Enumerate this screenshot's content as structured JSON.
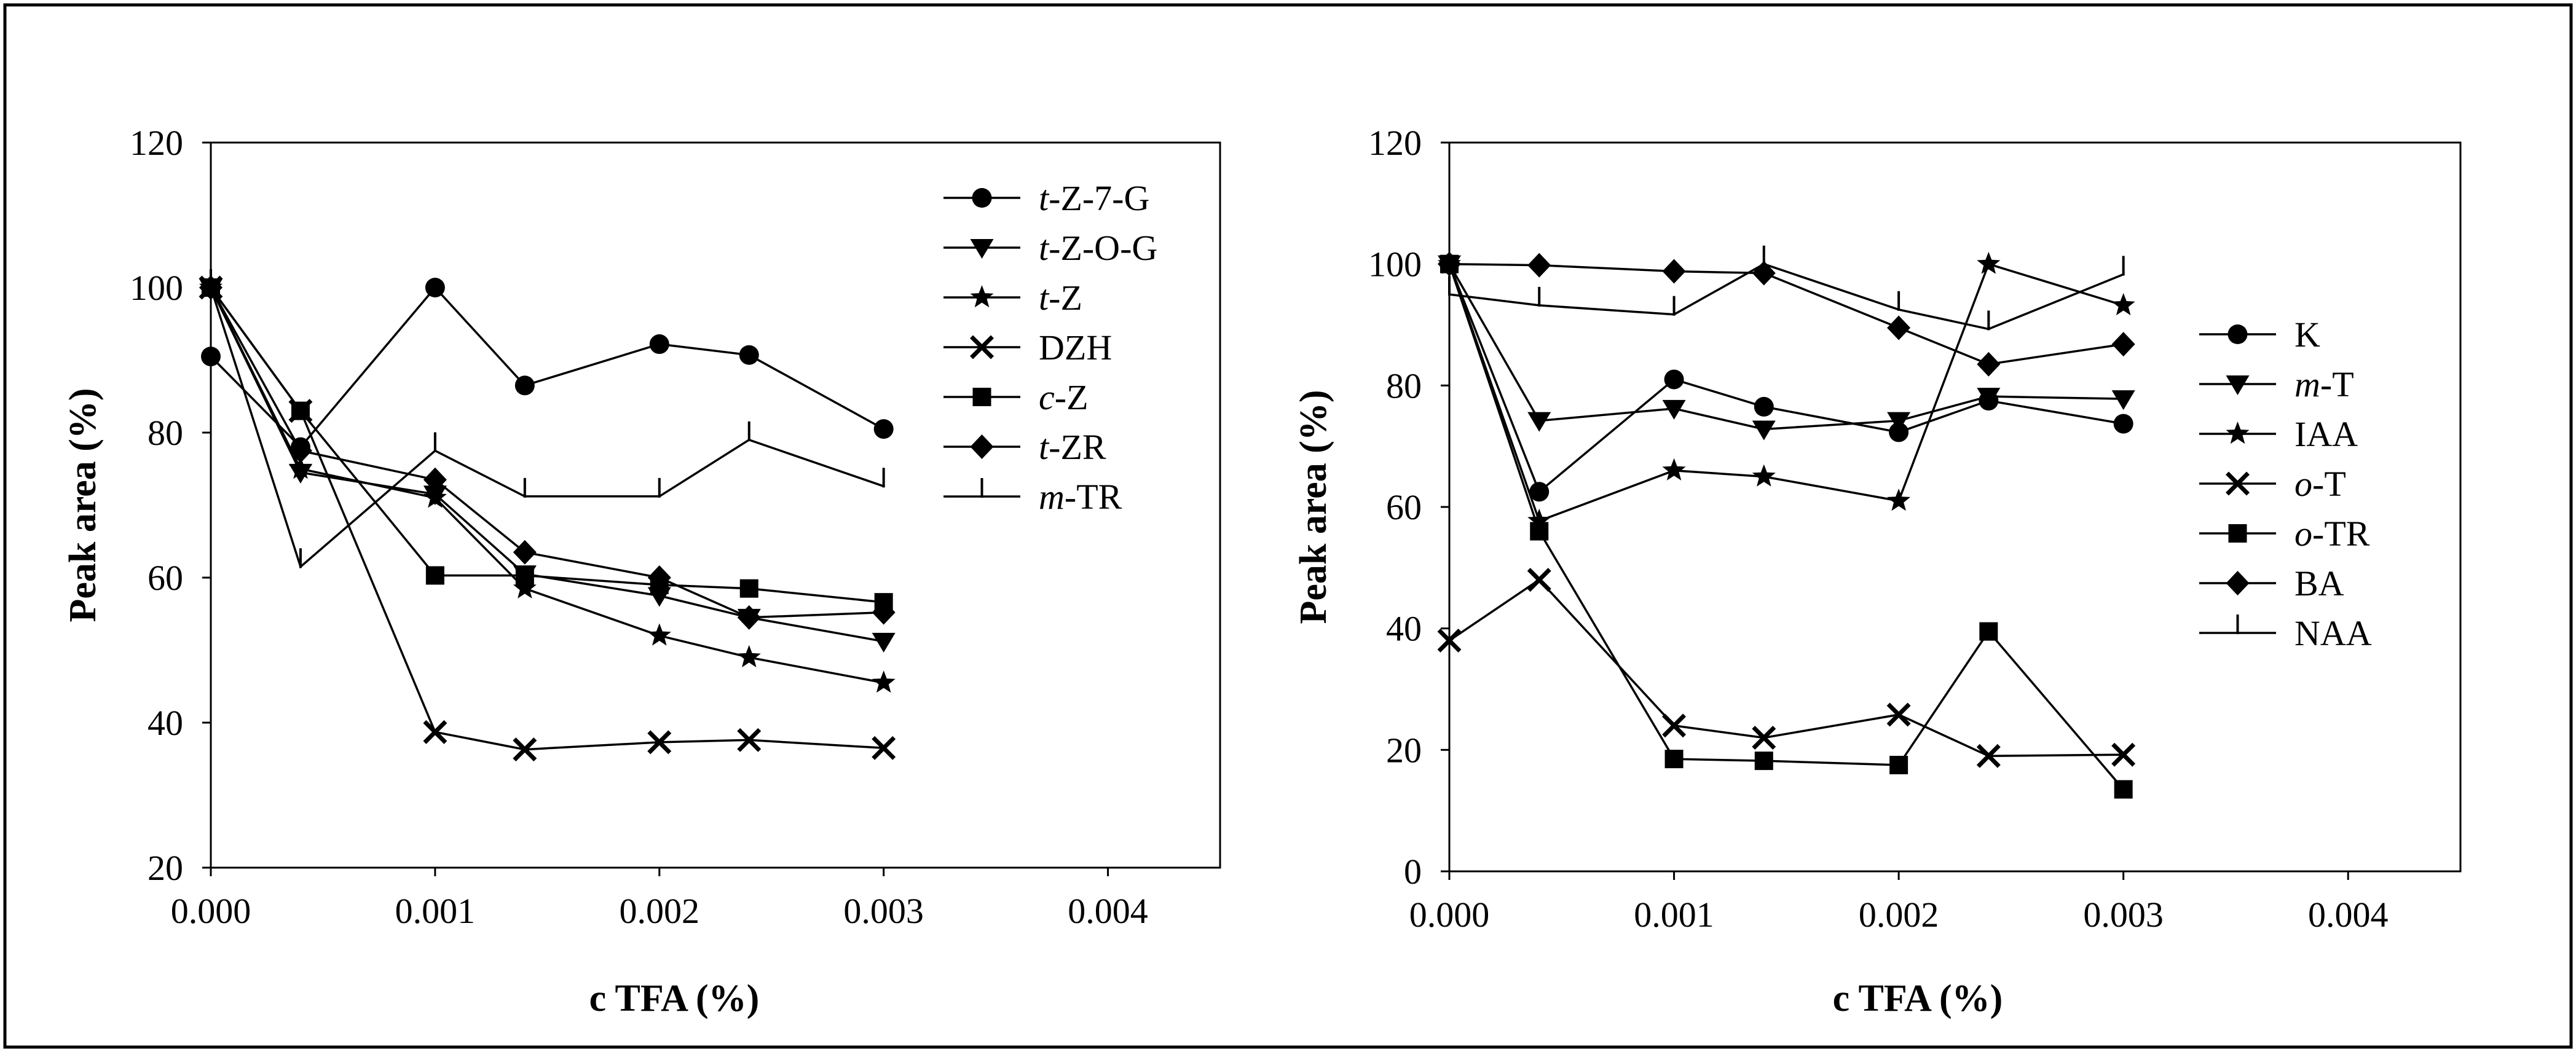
{
  "chart_data": [
    {
      "type": "line",
      "title": "",
      "xlabel": "c TFA (%)",
      "ylabel": "Peak area (%)",
      "xlim": [
        0,
        0.0045
      ],
      "ylim": [
        20,
        120
      ],
      "xticks": [
        "0.000",
        "0.001",
        "0.002",
        "0.003",
        "0.004"
      ],
      "xtick_values": [
        0,
        0.001,
        0.002,
        0.003,
        0.004
      ],
      "yticks": [
        "20",
        "40",
        "60",
        "80",
        "100",
        "120"
      ],
      "ytick_values": [
        20,
        40,
        60,
        80,
        100,
        120
      ],
      "x": [
        0,
        0.0004,
        0.001,
        0.0014,
        0.002,
        0.0024,
        0.003
      ],
      "legend_position": "top-right",
      "series": [
        {
          "name": "t-Z-7-G",
          "name_italic": "t",
          "name_rest": "-Z-7-G",
          "marker": "circle",
          "values": [
            90.5,
            78,
            100,
            86.5,
            92.2,
            90.7,
            80.5
          ]
        },
        {
          "name": "t-Z-O-G",
          "name_italic": "t",
          "name_rest": "-Z-O-G",
          "marker": "triangle-down",
          "values": [
            100,
            74.5,
            71.5,
            60.5,
            57.5,
            54.5,
            51.2
          ]
        },
        {
          "name": "t-Z",
          "name_italic": "t",
          "name_rest": "-Z",
          "marker": "star",
          "values": [
            100,
            75,
            71,
            58.5,
            52,
            49,
            45.5
          ]
        },
        {
          "name": "DZH",
          "name_italic": "",
          "name_rest": "DZH",
          "marker": "x",
          "values": [
            100,
            83,
            38.7,
            36.3,
            37.3,
            37.6,
            36.5
          ]
        },
        {
          "name": "c-Z",
          "name_italic": "c",
          "name_rest": "-Z",
          "marker": "square",
          "values": [
            100,
            83,
            60.3,
            60.3,
            59,
            58.5,
            56.6
          ]
        },
        {
          "name": "t-ZR",
          "name_italic": "t",
          "name_rest": "-ZR",
          "marker": "diamond",
          "values": [
            100,
            77.5,
            73.5,
            63.5,
            60,
            54.5,
            55.2
          ]
        },
        {
          "name": "m-TR",
          "name_italic": "m",
          "name_rest": "-TR",
          "marker": "vtick",
          "values": [
            100,
            61.5,
            77.5,
            71.2,
            71.2,
            79,
            72.6
          ]
        }
      ]
    },
    {
      "type": "line",
      "title": "",
      "xlabel": "c TFA (%)",
      "ylabel": "Peak area (%)",
      "xlim": [
        0,
        0.0045
      ],
      "ylim": [
        0,
        120
      ],
      "xticks": [
        "0.000",
        "0.001",
        "0.002",
        "0.003",
        "0.004"
      ],
      "xtick_values": [
        0,
        0.001,
        0.002,
        0.003,
        0.004
      ],
      "yticks": [
        "0",
        "20",
        "40",
        "60",
        "80",
        "100",
        "120"
      ],
      "ytick_values": [
        0,
        20,
        40,
        60,
        80,
        100,
        120
      ],
      "x": [
        0,
        0.0004,
        0.001,
        0.0014,
        0.002,
        0.0024,
        0.003
      ],
      "legend_position": "right",
      "series": [
        {
          "name": "K",
          "name_italic": "",
          "name_rest": "K",
          "marker": "circle",
          "values": [
            100,
            62.5,
            81,
            76.5,
            72.3,
            77.5,
            73.7
          ]
        },
        {
          "name": "m-T",
          "name_italic": "m",
          "name_rest": "-T",
          "marker": "triangle-down",
          "values": [
            100,
            74.2,
            76.2,
            72.8,
            74.2,
            78.2,
            77.8
          ]
        },
        {
          "name": "IAA",
          "name_italic": "",
          "name_rest": "IAA",
          "marker": "star",
          "values": [
            100,
            57.7,
            66,
            65,
            61,
            100,
            93.2
          ]
        },
        {
          "name": "o-T",
          "name_italic": "o",
          "name_rest": "-T",
          "marker": "x",
          "values": [
            38,
            48,
            24,
            22,
            25.8,
            19,
            19.2
          ]
        },
        {
          "name": "o-TR",
          "name_italic": "o",
          "name_rest": "-TR",
          "marker": "square",
          "values": [
            100,
            56,
            18.5,
            18.2,
            17.5,
            39.5,
            13.5
          ]
        },
        {
          "name": "BA",
          "name_italic": "",
          "name_rest": "BA",
          "marker": "diamond",
          "values": [
            100,
            99.8,
            98.8,
            98.5,
            89.5,
            83.5,
            86.8
          ]
        },
        {
          "name": "NAA",
          "name_italic": "",
          "name_rest": "NAA",
          "marker": "vtick",
          "values": [
            95,
            93.2,
            91.7,
            100,
            92.5,
            89.3,
            98.3
          ]
        }
      ]
    }
  ]
}
